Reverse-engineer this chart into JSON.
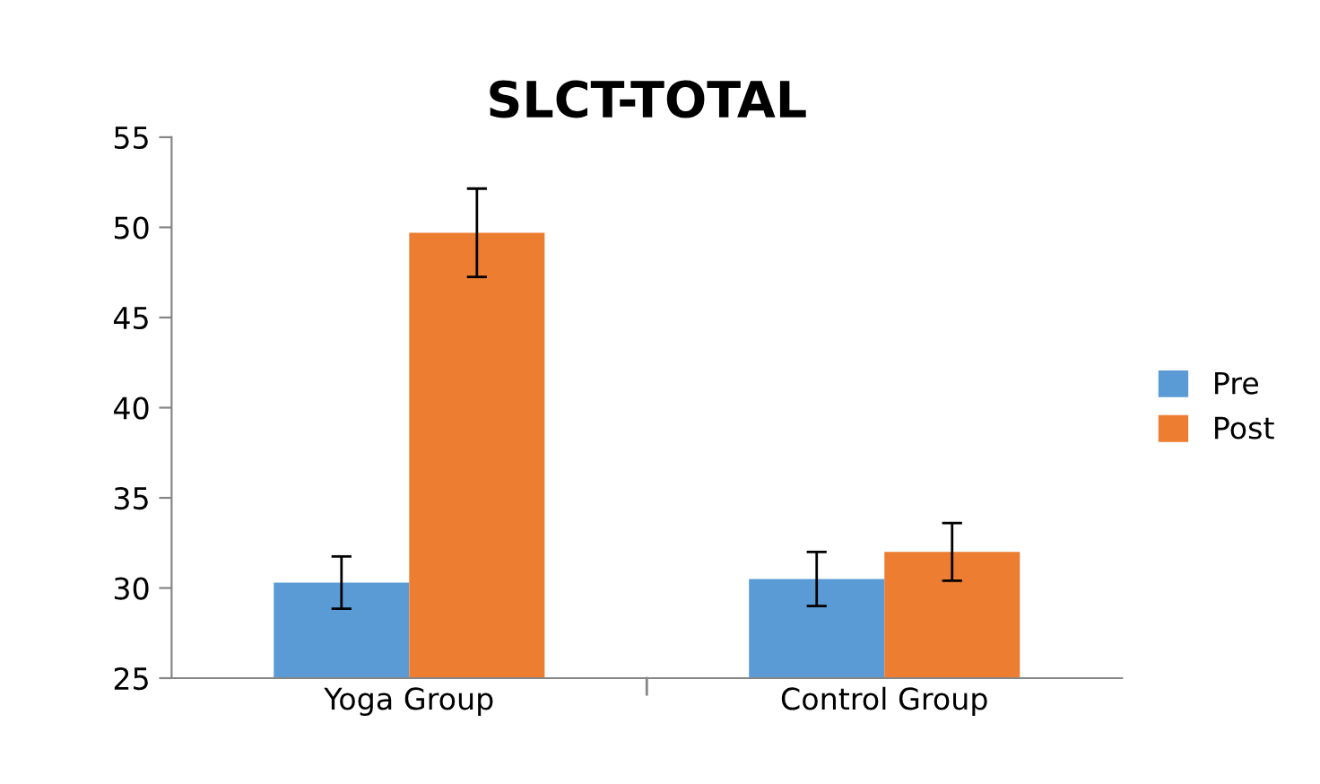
{
  "chart_data": {
    "type": "bar",
    "title": "SLCT-TOTAL",
    "categories": [
      "Yoga Group",
      "Control Group"
    ],
    "series": [
      {
        "name": "Pre",
        "color": "#5b9bd5",
        "values": [
          30.3,
          30.5
        ],
        "errors": [
          1.45,
          1.5
        ]
      },
      {
        "name": "Post",
        "color": "#ed7d31",
        "values": [
          49.7,
          32.0
        ],
        "errors": [
          2.45,
          1.6
        ]
      }
    ],
    "ylim": [
      25,
      55
    ],
    "yticks": [
      25,
      30,
      35,
      40,
      45,
      50,
      55
    ],
    "grid": false,
    "legend": "right"
  }
}
